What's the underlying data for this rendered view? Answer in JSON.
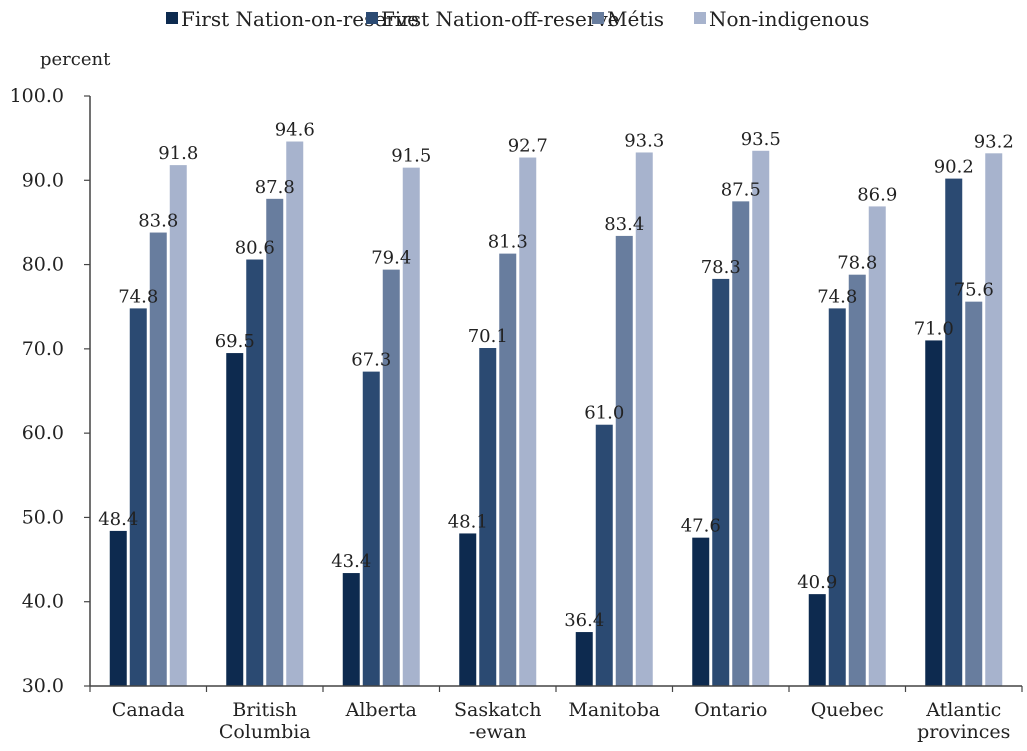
{
  "chart_data": {
    "type": "bar",
    "ylabel": "percent",
    "ylim": [
      30,
      100
    ],
    "yticks": [
      "30.0",
      "40.0",
      "50.0",
      "60.0",
      "70.0",
      "80.0",
      "90.0",
      "100.0"
    ],
    "categories": [
      [
        "Canada"
      ],
      [
        "British",
        "Columbia"
      ],
      [
        "Alberta"
      ],
      [
        "Saskatch",
        "-ewan"
      ],
      [
        "Manitoba"
      ],
      [
        "Ontario"
      ],
      [
        "Quebec"
      ],
      [
        "Atlantic",
        "provinces"
      ]
    ],
    "series": [
      {
        "name": "First Nation-on-reserve",
        "color": "#0d2a4f",
        "values": [
          48.4,
          69.5,
          43.4,
          48.1,
          36.4,
          47.6,
          40.9,
          71.0
        ],
        "labels": [
          "48.4",
          "69.5",
          "43.4",
          "48.1",
          "36.4",
          "47.6",
          "40.9",
          "71.0"
        ]
      },
      {
        "name": "First Nation-off-reserve",
        "color": "#2b4a72",
        "values": [
          74.8,
          80.6,
          67.3,
          70.1,
          61.0,
          78.3,
          74.8,
          90.2
        ],
        "labels": [
          "74.8",
          "80.6",
          "67.3",
          "70.1",
          "61.0",
          "78.3",
          "74.8",
          "90.2"
        ]
      },
      {
        "name": "Métis",
        "color": "#687d9e",
        "values": [
          83.8,
          87.8,
          79.4,
          81.3,
          83.4,
          87.5,
          78.8,
          75.6
        ],
        "labels": [
          "83.8",
          "87.8",
          "79.4",
          "81.3",
          "83.4",
          "87.5",
          "78.8",
          "75.6"
        ]
      },
      {
        "name": "Non-indigenous",
        "color": "#a7b3cd",
        "values": [
          91.8,
          94.6,
          91.5,
          92.7,
          93.3,
          93.5,
          86.9,
          93.2
        ],
        "labels": [
          "91.8",
          "94.6",
          "91.5",
          "92.7",
          "93.3",
          "93.5",
          "86.9",
          "93.2"
        ]
      }
    ],
    "legend_position": "top",
    "grid": false
  }
}
